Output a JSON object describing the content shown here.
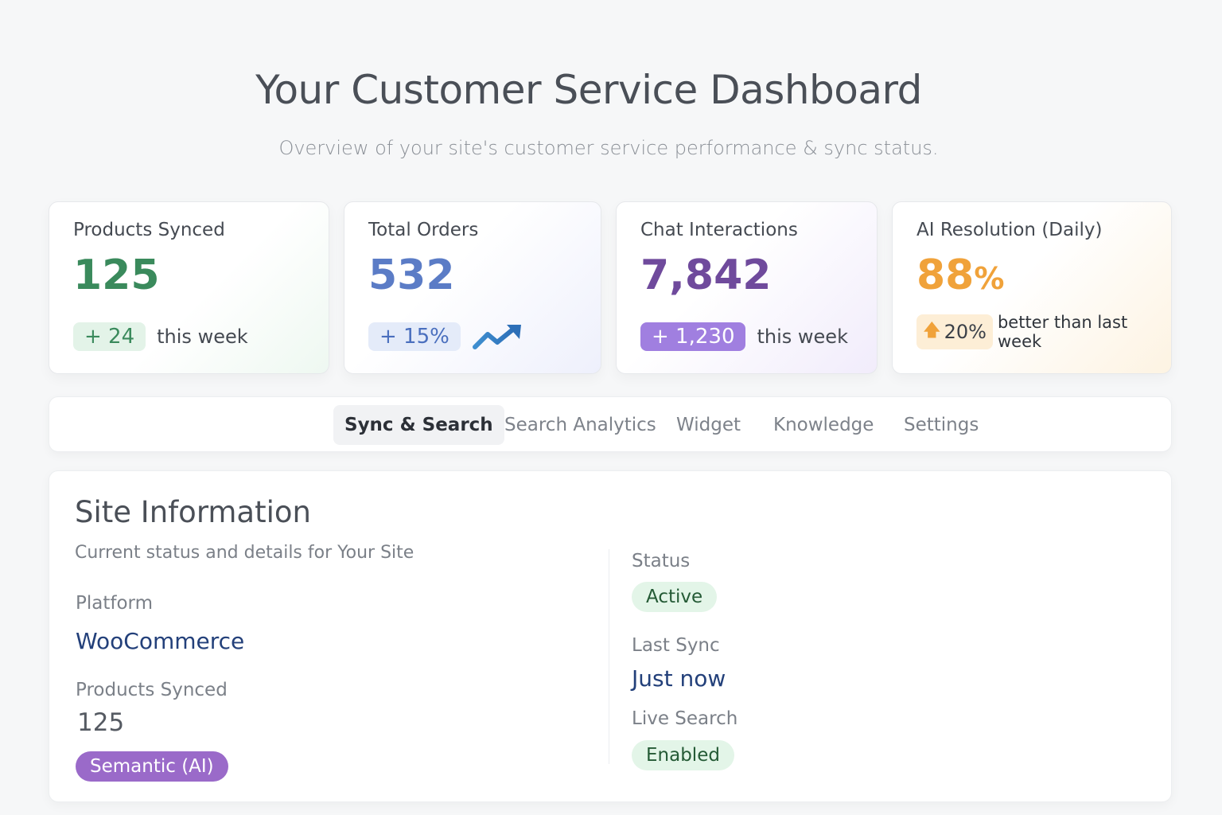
{
  "header": {
    "title": "Your Customer Service Dashboard",
    "subtitle": "Overview of your site's customer service performance & sync status."
  },
  "stats": {
    "products": {
      "label": "Products Synced",
      "value": "125",
      "change": "+ 24",
      "change_text": "this week"
    },
    "orders": {
      "label": "Total Orders",
      "value": "532",
      "change": "+ 15%",
      "icon": "trend-up-icon"
    },
    "chats": {
      "label": "Chat Interactions",
      "value": "7,842",
      "change": "+ 1,230",
      "change_text": "this week"
    },
    "ai": {
      "label": "AI Resolution (Daily)",
      "value": "88",
      "unit": "%",
      "change": "20%",
      "change_text": "better than last week",
      "icon": "arrow-up-icon"
    }
  },
  "tabs": [
    {
      "label": "Sync & Search",
      "active": true
    },
    {
      "label": "Search Analytics"
    },
    {
      "label": "Widget"
    },
    {
      "label": "Knowledge"
    },
    {
      "label": "Settings"
    }
  ],
  "site_info": {
    "title": "Site Information",
    "subtitle": "Current status and details for Your Site",
    "platform_label": "Platform",
    "platform_value": "WooCommerce",
    "products_label": "Products Synced",
    "products_value": "125",
    "search_type": "Semantic (AI)",
    "status_label": "Status",
    "status_value": "Active",
    "last_sync_label": "Last Sync",
    "last_sync_value": "Just now",
    "live_search_label": "Live Search",
    "live_search_value": "Enabled"
  },
  "colors": {
    "green": "#3a8a5c",
    "blue": "#5b7cc6",
    "purple": "#6f4a9c",
    "orange": "#f0a23a"
  }
}
